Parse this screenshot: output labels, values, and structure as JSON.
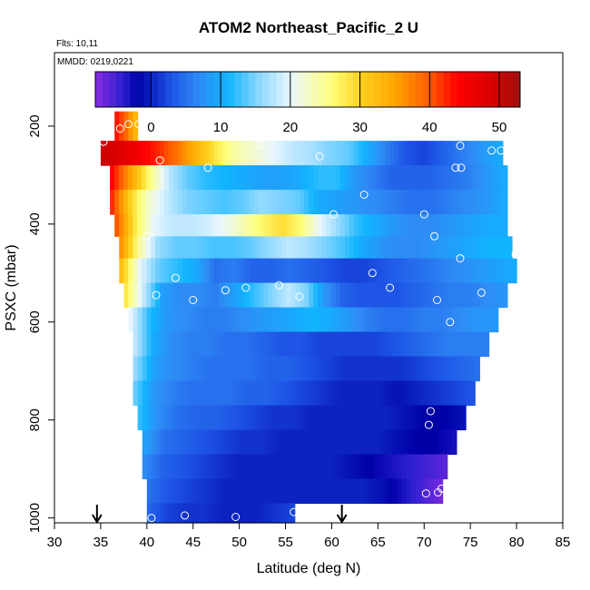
{
  "chart_data": {
    "type": "heatmap",
    "title": "ATOM2 Northeast_Pacific_2 U",
    "flights_text": "Flts: 10,11",
    "mmdd_text": "MMDD: 0219,0221",
    "xlabel": "Latitude (deg N)",
    "ylabel": "PSXC (mbar)",
    "xlim": [
      30,
      85
    ],
    "ylim": [
      1010,
      50
    ],
    "y_reversed": true,
    "xticks": [
      30,
      35,
      40,
      45,
      50,
      55,
      60,
      65,
      70,
      75,
      80,
      85
    ],
    "yticks": [
      200,
      400,
      600,
      800,
      1000
    ],
    "colorbar": {
      "range": [
        -8,
        53
      ],
      "ticks": [
        0,
        10,
        20,
        30,
        40,
        50
      ],
      "stops": [
        {
          "v": -8,
          "c": "#8a2be2"
        },
        {
          "v": -4,
          "c": "#2a1fd0"
        },
        {
          "v": -2,
          "c": "#0000a8"
        },
        {
          "v": 3,
          "c": "#1e55e6"
        },
        {
          "v": 7,
          "c": "#2f8cf5"
        },
        {
          "v": 11,
          "c": "#10b4ff"
        },
        {
          "v": 15,
          "c": "#7fd3ff"
        },
        {
          "v": 20,
          "c": "#e9f6ff"
        },
        {
          "v": 26,
          "c": "#ffff7a"
        },
        {
          "v": 30,
          "c": "#ffd21e"
        },
        {
          "v": 35,
          "c": "#ffa500"
        },
        {
          "v": 40,
          "c": "#ff5a00"
        },
        {
          "v": 44,
          "c": "#ff0000"
        },
        {
          "v": 49,
          "c": "#d80000"
        },
        {
          "v": 53,
          "c": "#a01010"
        }
      ]
    },
    "layers": [
      {
        "p0": 170,
        "p1": 230,
        "x0": 36.5,
        "x1": 39.0,
        "v": [
          43,
          39,
          33
        ]
      },
      {
        "p0": 230,
        "p1": 280,
        "x0": 35.0,
        "x1": 78.5,
        "v": [
          50,
          48,
          45,
          42,
          38,
          33,
          28,
          24,
          22,
          20,
          18,
          17,
          15,
          14,
          10,
          6,
          3,
          2,
          4,
          6,
          8,
          10
        ]
      },
      {
        "p0": 280,
        "p1": 330,
        "x0": 36.0,
        "x1": 79.0,
        "v": [
          44,
          35,
          26,
          18,
          14,
          12,
          11,
          10,
          9,
          9,
          10,
          12,
          12,
          8,
          6,
          4,
          4,
          4,
          5,
          6,
          8,
          10
        ]
      },
      {
        "p0": 330,
        "p1": 380,
        "x0": 36.0,
        "x1": 79.0,
        "v": [
          42,
          30,
          22,
          18,
          15,
          14,
          13,
          14,
          16,
          15,
          14,
          10,
          9,
          8,
          7,
          6,
          5,
          5,
          6,
          7,
          8,
          10
        ]
      },
      {
        "p0": 380,
        "p1": 425,
        "x0": 36.5,
        "x1": 79.0,
        "v": [
          40,
          28,
          20,
          18,
          18,
          19,
          21,
          24,
          27,
          29,
          26,
          20,
          16,
          12,
          10,
          8,
          7,
          7,
          8,
          9,
          10,
          10
        ]
      },
      {
        "p0": 425,
        "p1": 470,
        "x0": 37.0,
        "x1": 79.5,
        "v": [
          36,
          24,
          16,
          14,
          14,
          13,
          13,
          14,
          16,
          18,
          17,
          15,
          13,
          10,
          8,
          7,
          7,
          8,
          9,
          10,
          11,
          11
        ]
      },
      {
        "p0": 470,
        "p1": 520,
        "x0": 37.0,
        "x1": 80.0,
        "v": [
          32,
          20,
          14,
          12,
          10,
          5,
          6,
          4,
          4,
          5,
          4,
          3,
          2,
          2,
          3,
          4,
          5,
          6,
          7,
          8,
          9,
          10
        ]
      },
      {
        "p0": 520,
        "p1": 570,
        "x0": 37.5,
        "x1": 79.0,
        "v": [
          28,
          18,
          9,
          7,
          7,
          6,
          9,
          12,
          15,
          18,
          15,
          8,
          4,
          3,
          3,
          3,
          4,
          5,
          6,
          6,
          7,
          8
        ]
      },
      {
        "p0": 570,
        "p1": 620,
        "x0": 38.0,
        "x1": 78.0,
        "v": [
          20,
          12,
          8,
          7,
          6,
          6,
          7,
          8,
          9,
          10,
          11,
          10,
          8,
          6,
          5,
          5,
          6,
          6,
          7,
          8,
          8
        ]
      },
      {
        "p0": 620,
        "p1": 670,
        "x0": 38.5,
        "x1": 77.0,
        "v": [
          18,
          10,
          7,
          6,
          6,
          5,
          5,
          4,
          3,
          3,
          2,
          2,
          2,
          2,
          3,
          4,
          5,
          6,
          6,
          6
        ]
      },
      {
        "p0": 670,
        "p1": 720,
        "x0": 38.5,
        "x1": 76.0,
        "v": [
          16,
          9,
          7,
          6,
          5,
          5,
          5,
          4,
          4,
          3,
          2,
          1,
          1,
          1,
          1,
          2,
          3,
          4,
          5
        ]
      },
      {
        "p0": 720,
        "p1": 770,
        "x0": 38.5,
        "x1": 75.5,
        "v": [
          14,
          8,
          6,
          5,
          5,
          5,
          4,
          4,
          3,
          2,
          1,
          0,
          0,
          0,
          -1,
          0,
          1,
          2,
          3
        ]
      },
      {
        "p0": 770,
        "p1": 820,
        "x0": 39.0,
        "x1": 74.5,
        "v": [
          12,
          7,
          5,
          4,
          4,
          3,
          2,
          1,
          1,
          0,
          0,
          0,
          0,
          0,
          -1,
          -2,
          -2,
          -1
        ]
      },
      {
        "p0": 820,
        "p1": 870,
        "x0": 39.5,
        "x1": 73.5,
        "v": [
          9,
          5,
          4,
          3,
          2,
          1,
          1,
          0,
          0,
          0,
          0,
          0,
          0,
          -1,
          -2,
          -2,
          -3
        ]
      },
      {
        "p0": 870,
        "p1": 920,
        "x0": 39.5,
        "x1": 72.5,
        "v": [
          7,
          4,
          3,
          2,
          1,
          0,
          0,
          0,
          0,
          0,
          0,
          -1,
          -2,
          -3,
          -4,
          -5,
          -6
        ]
      },
      {
        "p0": 920,
        "p1": 970,
        "x0": 40.0,
        "x1": 72.0,
        "v": [
          5,
          3,
          2,
          1,
          0,
          0,
          0,
          0,
          0,
          0,
          0,
          0,
          -1,
          -3,
          -5,
          -7
        ]
      },
      {
        "p0": 970,
        "p1": 1010,
        "x0": 40.0,
        "x1": 56.0,
        "v": [
          4,
          2,
          1,
          1,
          0,
          0,
          0,
          1,
          2
        ]
      }
    ],
    "observations": [
      {
        "lat": 37.1,
        "p": 205
      },
      {
        "lat": 38.0,
        "p": 196
      },
      {
        "lat": 39.1,
        "p": 196
      },
      {
        "lat": 35.3,
        "p": 232
      },
      {
        "lat": 41.4,
        "p": 270
      },
      {
        "lat": 46.6,
        "p": 285
      },
      {
        "lat": 52.3,
        "p": 238
      },
      {
        "lat": 58.7,
        "p": 262
      },
      {
        "lat": 68.1,
        "p": 218
      },
      {
        "lat": 73.9,
        "p": 240
      },
      {
        "lat": 77.3,
        "p": 250
      },
      {
        "lat": 78.3,
        "p": 250
      },
      {
        "lat": 73.4,
        "p": 285
      },
      {
        "lat": 74.0,
        "p": 285
      },
      {
        "lat": 63.5,
        "p": 340
      },
      {
        "lat": 40.0,
        "p": 425
      },
      {
        "lat": 60.2,
        "p": 380
      },
      {
        "lat": 70.0,
        "p": 380
      },
      {
        "lat": 71.1,
        "p": 425
      },
      {
        "lat": 73.9,
        "p": 470
      },
      {
        "lat": 79.9,
        "p": 462
      },
      {
        "lat": 43.1,
        "p": 510
      },
      {
        "lat": 64.4,
        "p": 500
      },
      {
        "lat": 41.0,
        "p": 545
      },
      {
        "lat": 45.0,
        "p": 555
      },
      {
        "lat": 48.5,
        "p": 535
      },
      {
        "lat": 50.7,
        "p": 530
      },
      {
        "lat": 54.3,
        "p": 525
      },
      {
        "lat": 56.5,
        "p": 548
      },
      {
        "lat": 66.3,
        "p": 530
      },
      {
        "lat": 71.4,
        "p": 555
      },
      {
        "lat": 76.2,
        "p": 540
      },
      {
        "lat": 72.8,
        "p": 600
      },
      {
        "lat": 70.7,
        "p": 782
      },
      {
        "lat": 70.5,
        "p": 810
      },
      {
        "lat": 70.2,
        "p": 950
      },
      {
        "lat": 71.5,
        "p": 948
      },
      {
        "lat": 71.9,
        "p": 940
      },
      {
        "lat": 40.5,
        "p": 1000
      },
      {
        "lat": 44.1,
        "p": 995
      },
      {
        "lat": 49.6,
        "p": 998
      },
      {
        "lat": 55.9,
        "p": 988
      }
    ],
    "arrows_lat": [
      34.6,
      61.1
    ]
  }
}
